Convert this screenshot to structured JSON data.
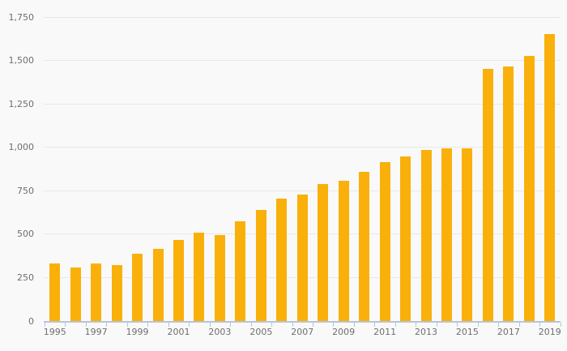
{
  "colors": {
    "background": "#F9F9F9",
    "bar": "#FAB00A",
    "gridline": "#E8E8E8",
    "axis": "#B8C4D8",
    "label_text": "#6E6E6E"
  },
  "chart_data": {
    "type": "bar",
    "title": "",
    "xlabel": "",
    "ylabel": "",
    "categories": [
      "1995",
      "1996",
      "1997",
      "1998",
      "1999",
      "2000",
      "2001",
      "2002",
      "2003",
      "2004",
      "2005",
      "2006",
      "2007",
      "2008",
      "2009",
      "2010",
      "2011",
      "2012",
      "2013",
      "2014",
      "2015",
      "2016",
      "2017",
      "2018",
      "2019"
    ],
    "values": [
      330,
      310,
      330,
      322,
      387,
      414,
      466,
      507,
      497,
      574,
      640,
      704,
      729,
      790,
      806,
      860,
      913,
      946,
      986,
      992,
      995,
      1452,
      1465,
      1525,
      1653
    ],
    "ylim": [
      0,
      1750
    ],
    "ytick_step": 250,
    "ytick_labels": [
      "0",
      "250",
      "500",
      "750",
      "1,000",
      "1,250",
      "1,500",
      "1,750"
    ],
    "xtick_labels_shown": [
      "1995",
      "1997",
      "1999",
      "2001",
      "2003",
      "2005",
      "2007",
      "2009",
      "2011",
      "2013",
      "2015",
      "2017",
      "2019"
    ],
    "grid": true,
    "legend": false
  }
}
